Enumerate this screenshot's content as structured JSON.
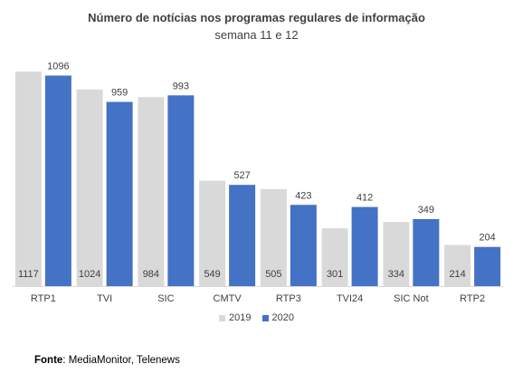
{
  "chart_data": {
    "type": "bar",
    "title": "Número de notícias nos programas regulares de informação",
    "subtitle": "semana 11 e 12",
    "categories": [
      "RTP1",
      "TVI",
      "SIC",
      "CMTV",
      "RTP3",
      "TVI24",
      "SIC Not",
      "RTP2"
    ],
    "series": [
      {
        "name": "2019",
        "color": "#d9d9d9",
        "values": [
          1117,
          1024,
          984,
          549,
          505,
          301,
          334,
          214
        ]
      },
      {
        "name": "2020",
        "color": "#4472c4",
        "values": [
          1096,
          959,
          993,
          527,
          423,
          412,
          349,
          204
        ]
      }
    ],
    "ylim": [
      0,
      1150
    ],
    "grid": false,
    "legend_position": "bottom"
  },
  "source": {
    "label": "Fonte",
    "text": ": MediaMonitor, Telenews"
  }
}
